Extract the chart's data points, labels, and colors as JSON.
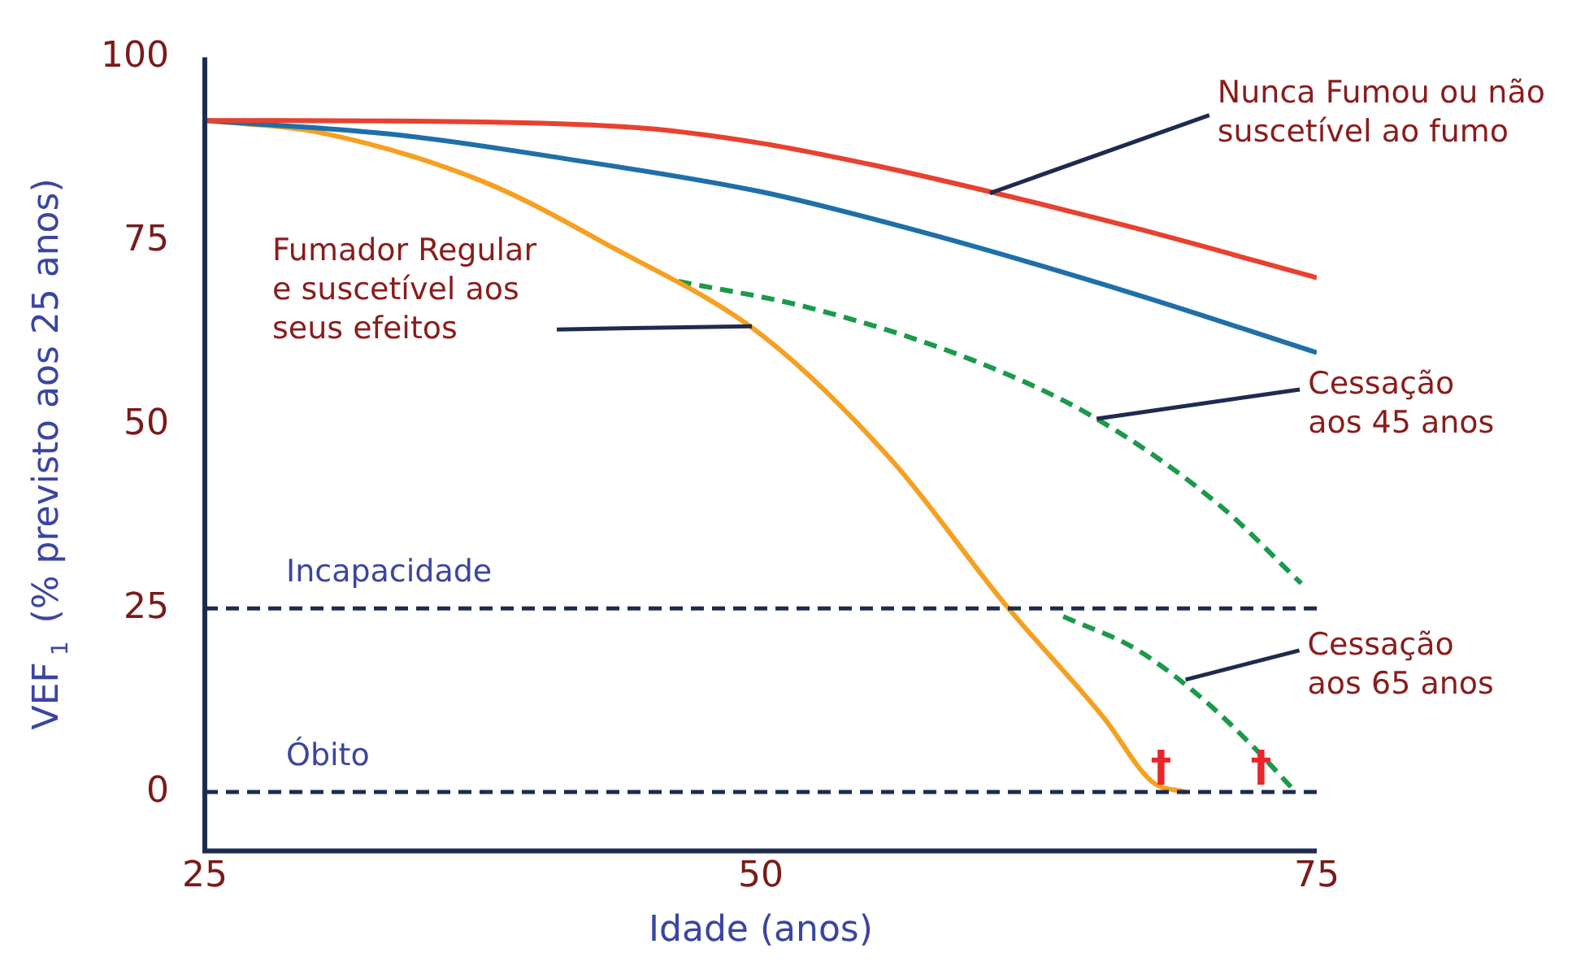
{
  "chart_data": {
    "type": "line",
    "xlabel": "Idade (anos)",
    "ylabel": "VEF$_{1}$ (% previsto aos 25 anos)",
    "xlim": [
      25,
      75
    ],
    "xticks": [
      25,
      50,
      75
    ],
    "ylim": [
      -8,
      100
    ],
    "yticks": [
      0,
      25,
      50,
      75,
      100
    ],
    "grid": false,
    "legend": false,
    "marker": "none",
    "series": [
      {
        "color": "#e8412f",
        "line_style": "solid",
        "x": [
          25,
          37.5,
          44.9,
          50,
          55.1,
          60.3,
          66.9,
          75
        ],
        "values": [
          91.4,
          91.2,
          90.3,
          88.3,
          85.3,
          81.7,
          76.7,
          70
        ]
      },
      {
        "color": "#1f6fa8",
        "line_style": "solid",
        "x": [
          25,
          33.8,
          41.2,
          50,
          57.4,
          66.9,
          75
        ],
        "values": [
          91.4,
          89.4,
          86.2,
          81.7,
          76.1,
          67.7,
          59.8
        ]
      },
      {
        "color": "#f5a021",
        "line_style": "solid",
        "x": [
          25,
          30.1,
          37.5,
          43.4,
          50,
          55.9,
          61,
          65.4,
          67.6,
          69.1
        ],
        "values": [
          91.4,
          89.8,
          83.1,
          74,
          62.3,
          45.1,
          25.5,
          10.2,
          1.4,
          0
        ]
      },
      {
        "color": "#1a9a4a",
        "line_style": "dashed",
        "x": [
          46.3,
          52.2,
          59.6,
          65.1,
          70.6,
          74.3
        ],
        "values": [
          69.5,
          65.9,
          58.7,
          50.8,
          39.1,
          28.4
        ]
      },
      {
        "color": "#1a9a4a",
        "line_style": "dashed",
        "x": [
          63.6,
          66.9,
          69.9,
          72.1,
          73.9
        ],
        "values": [
          23.9,
          19.4,
          12.6,
          6.3,
          0.5
        ]
      }
    ],
    "ref_lines": [
      {
        "axis": "y",
        "value": 25,
        "label": "Incapacidade",
        "color": "#1d2b4f",
        "line_style": "dashed"
      },
      {
        "axis": "y",
        "value": 0,
        "label": "Óbito",
        "color": "#1d2b4f",
        "line_style": "dashed"
      }
    ],
    "annotations": [
      {
        "text": "Nunca Fumou ou não\nsuscetível ao fumo",
        "x": 60.3,
        "y": 81.5
      },
      {
        "text": "Fumador Regular\ne suscetível aos\nseus efeitos",
        "x": 49.6,
        "y": 63.4
      },
      {
        "text": "Cessação\naos 45 anos",
        "x": 65.1,
        "y": 50.8
      },
      {
        "text": "Cessação\naos 65 anos",
        "x": 69.1,
        "y": 15.3
      },
      {
        "text": "†",
        "x": 68,
        "y": 0
      },
      {
        "text": "†",
        "x": 72.5,
        "y": 0
      }
    ]
  }
}
